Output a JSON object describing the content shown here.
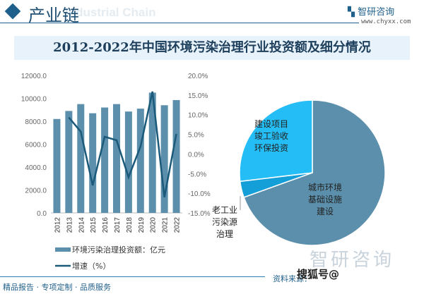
{
  "header": {
    "title": "产业链",
    "subtitle": "Industrial Chain",
    "logo": "智研咨询",
    "url": "www.chyxx.com"
  },
  "chart_title": "2012-2022年中国环境污染治理行业投资额及细分情况",
  "colors": {
    "bar": "#5b8fab",
    "line": "#1b5a7a",
    "pie": [
      "#5b8fab",
      "#149fd8",
      "#25bdf5"
    ]
  },
  "chart_data": [
    {
      "type": "bar+line",
      "categories": [
        "2012",
        "2013",
        "2014",
        "2015",
        "2016",
        "2017",
        "2018",
        "2019",
        "2020",
        "2021",
        "2022"
      ],
      "series": [
        {
          "name": "环境污染治理投资额：亿元",
          "type": "bar",
          "axis": "left",
          "values": [
            8200,
            8900,
            9500,
            8700,
            9200,
            9500,
            8850,
            9100,
            10500,
            9400,
            9850
          ]
        },
        {
          "name": "增速（%）",
          "type": "line",
          "axis": "right",
          "values": [
            null,
            9.3,
            5.7,
            -8.0,
            4.4,
            3.5,
            -5.9,
            1.9,
            15.9,
            -11.0,
            5.1
          ]
        }
      ],
      "left_axis": {
        "ticks": [
          "0.0",
          "2000.0",
          "4000.0",
          "6000.0",
          "8000.0",
          "10000.0",
          "12000.0"
        ],
        "range": [
          0,
          12000
        ]
      },
      "right_axis": {
        "ticks": [
          "-15.0%",
          "-10.0%",
          "-5.0%",
          "0.0%",
          "5.0%",
          "10.0%",
          "15.0%",
          "20.0%"
        ],
        "range": [
          -15,
          20
        ]
      },
      "grid": false,
      "legend": "bottom"
    },
    {
      "type": "pie",
      "slices": [
        {
          "label": "城市环境基础设施建设",
          "value": 69.5
        },
        {
          "label": "老工业污染源治理",
          "value": 3.6
        },
        {
          "label": "建设项目竣工验收环保投资",
          "value": 26.9
        }
      ]
    }
  ],
  "footer": {
    "slogan": "精品报告 · 专项定制 · 品质服务",
    "source": "资料来源：",
    "watermark": "搜狐号@",
    "watermark_logo": "智研咨询"
  }
}
